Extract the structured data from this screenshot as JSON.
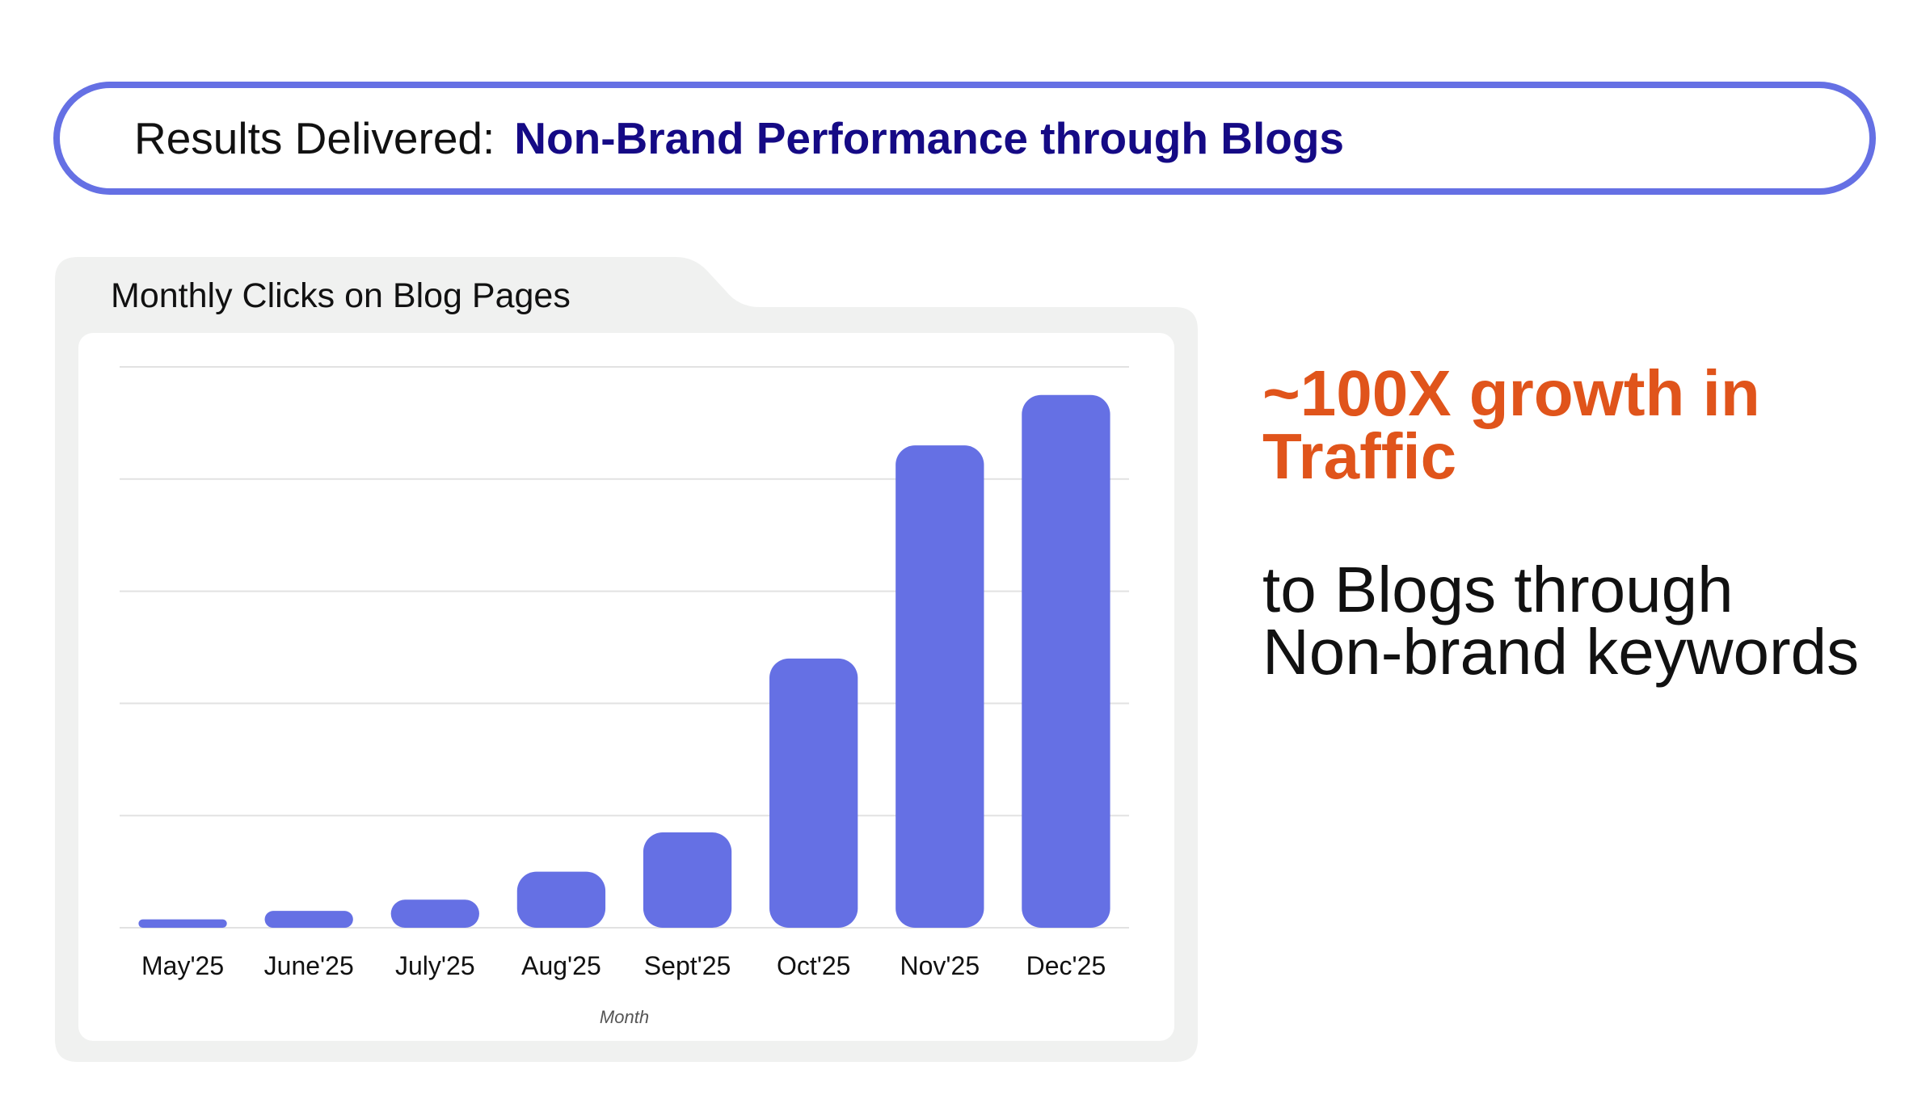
{
  "header": {
    "prefix": "Results Delivered:",
    "highlight": "Non-Brand Performance through Blogs"
  },
  "card": {
    "title": "Monthly Clicks on Blog Pages"
  },
  "side": {
    "highlight": "~100X growth in Traffic",
    "text": "to Blogs through Non-brand keywords"
  },
  "colors": {
    "accent": "#6570e4",
    "bar": "#6570e4",
    "headline_emphasis": "#150a85",
    "highlight": "#e0541b",
    "card_bg": "#f0f1f0"
  },
  "chart_data": {
    "type": "bar",
    "title": "",
    "xlabel": "Month",
    "ylabel": "",
    "categories": [
      "May'25",
      "June'25",
      "July'25",
      "Aug'25",
      "Sept'25",
      "Oct'25",
      "Nov'25",
      "Dec'25"
    ],
    "values": [
      1.5,
      3,
      5,
      10,
      17,
      48,
      86,
      95
    ],
    "ylim": [
      0,
      100
    ],
    "grid": true,
    "y_ticks_visible": false,
    "legend": "none"
  }
}
